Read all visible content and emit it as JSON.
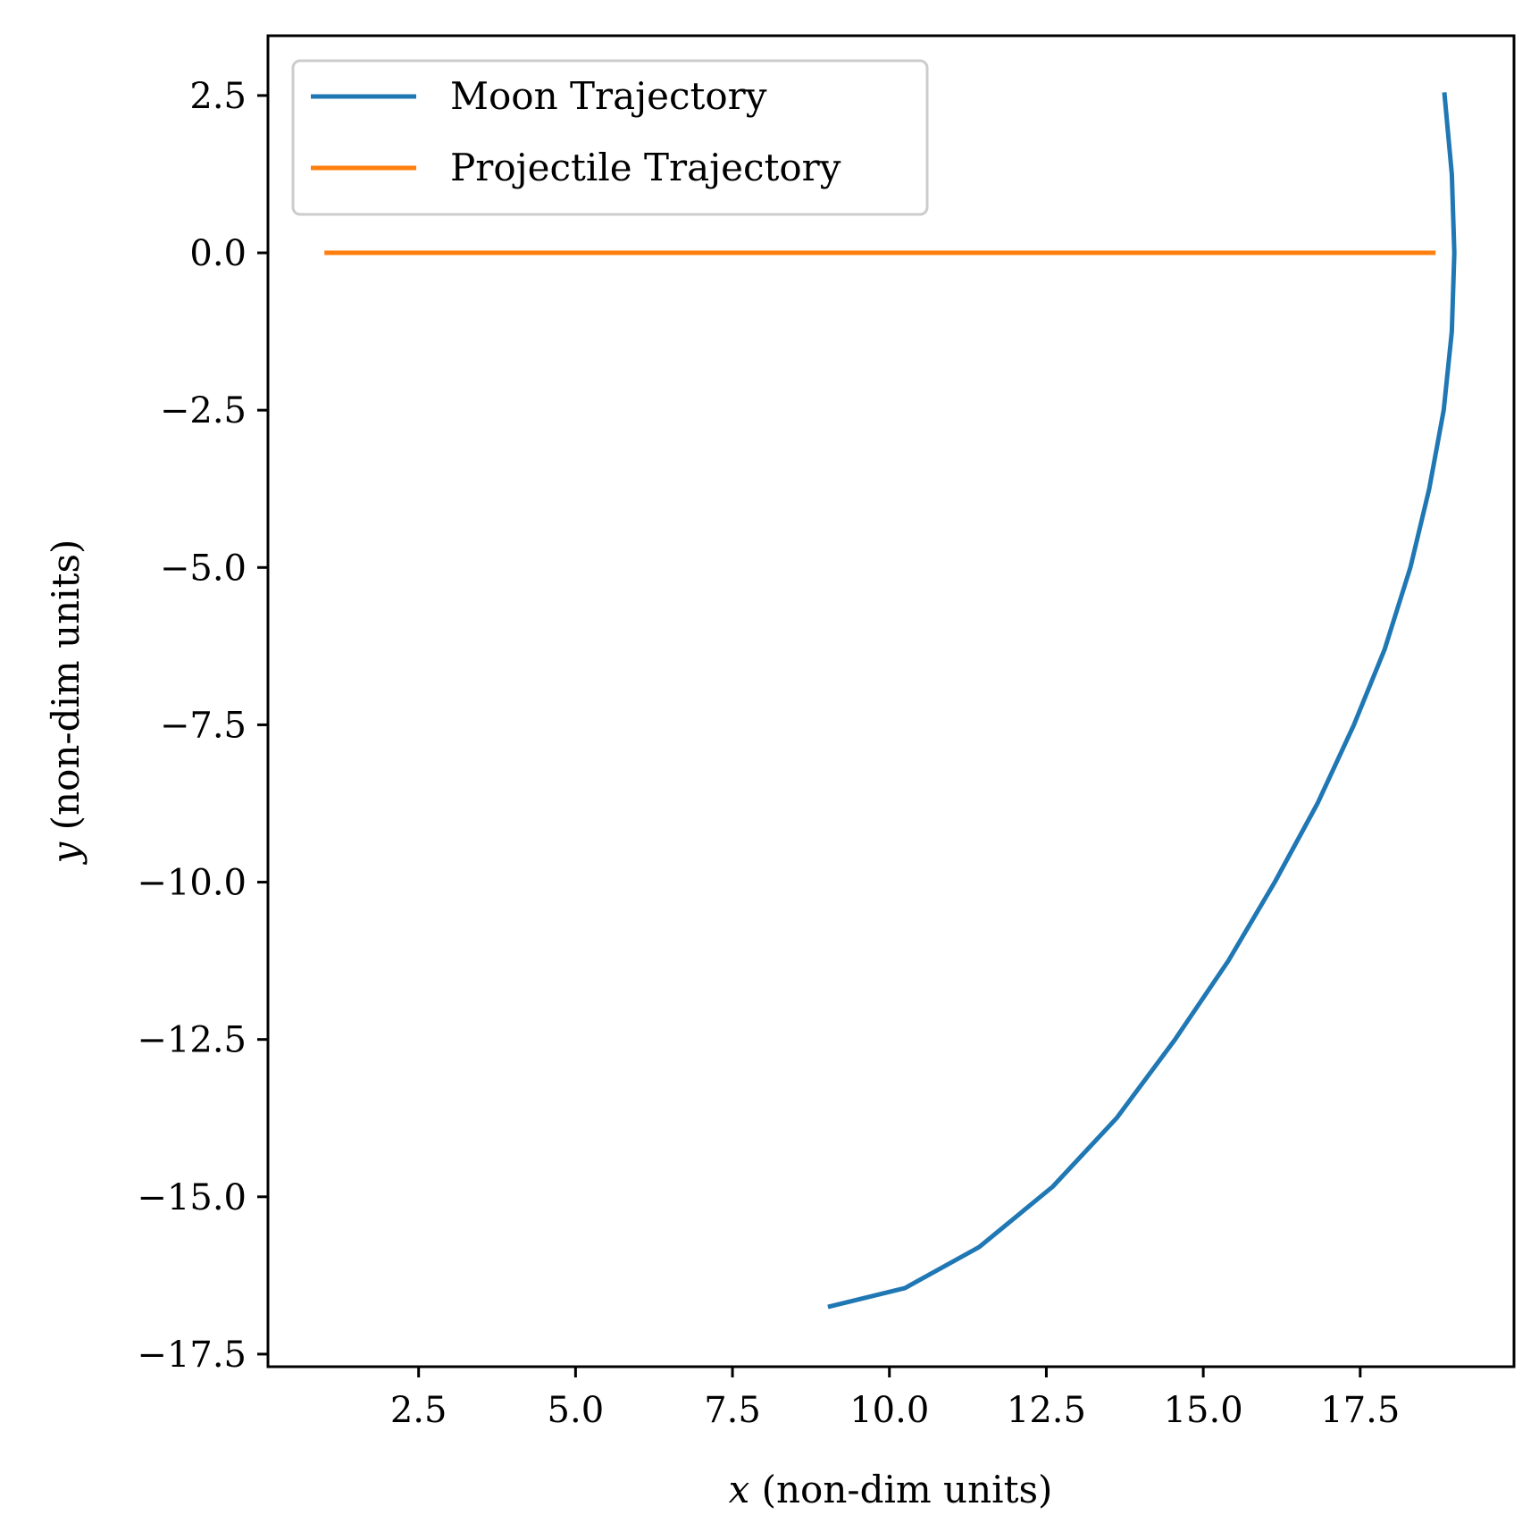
{
  "chart_data": {
    "type": "line",
    "xlabel_var": "x",
    "xlabel_rest": " (non-dim units)",
    "ylabel_var": "y",
    "ylabel_rest": " (non-dim units)",
    "xlim": [
      0.1,
      19.95
    ],
    "ylim": [
      -17.7,
      3.45
    ],
    "xticks": [
      2.5,
      5.0,
      7.5,
      10.0,
      12.5,
      15.0,
      17.5
    ],
    "xtick_labels": [
      "2.5",
      "5.0",
      "7.5",
      "10.0",
      "12.5",
      "15.0",
      "17.5"
    ],
    "yticks": [
      2.5,
      0.0,
      -2.5,
      -5.0,
      -7.5,
      -10.0,
      -12.5,
      -15.0,
      -17.5
    ],
    "ytick_labels": [
      "2.5",
      "0.0",
      "−2.5",
      "−5.0",
      "−7.5",
      "−10.0",
      "−12.5",
      "−15.0",
      "−17.5"
    ],
    "grid": false,
    "legend_position": "top-left",
    "series": [
      {
        "name": "Moon Trajectory",
        "color": "#1f77b4",
        "x": [
          18.84,
          18.96,
          19.0,
          18.96,
          18.83,
          18.6,
          18.3,
          17.89,
          17.4,
          16.82,
          16.14,
          15.4,
          14.55,
          13.62,
          12.6,
          11.43,
          10.25,
          9.02
        ],
        "y": [
          2.55,
          1.25,
          0.0,
          -1.25,
          -2.5,
          -3.75,
          -5.0,
          -6.3,
          -7.5,
          -8.75,
          -10.0,
          -11.25,
          -12.5,
          -13.75,
          -14.84,
          -15.8,
          -16.45,
          -16.75
        ]
      },
      {
        "name": "Projectile Trajectory",
        "color": "#ff7f0e",
        "x": [
          1.0,
          18.7
        ],
        "y": [
          0.0,
          0.0
        ]
      }
    ]
  }
}
